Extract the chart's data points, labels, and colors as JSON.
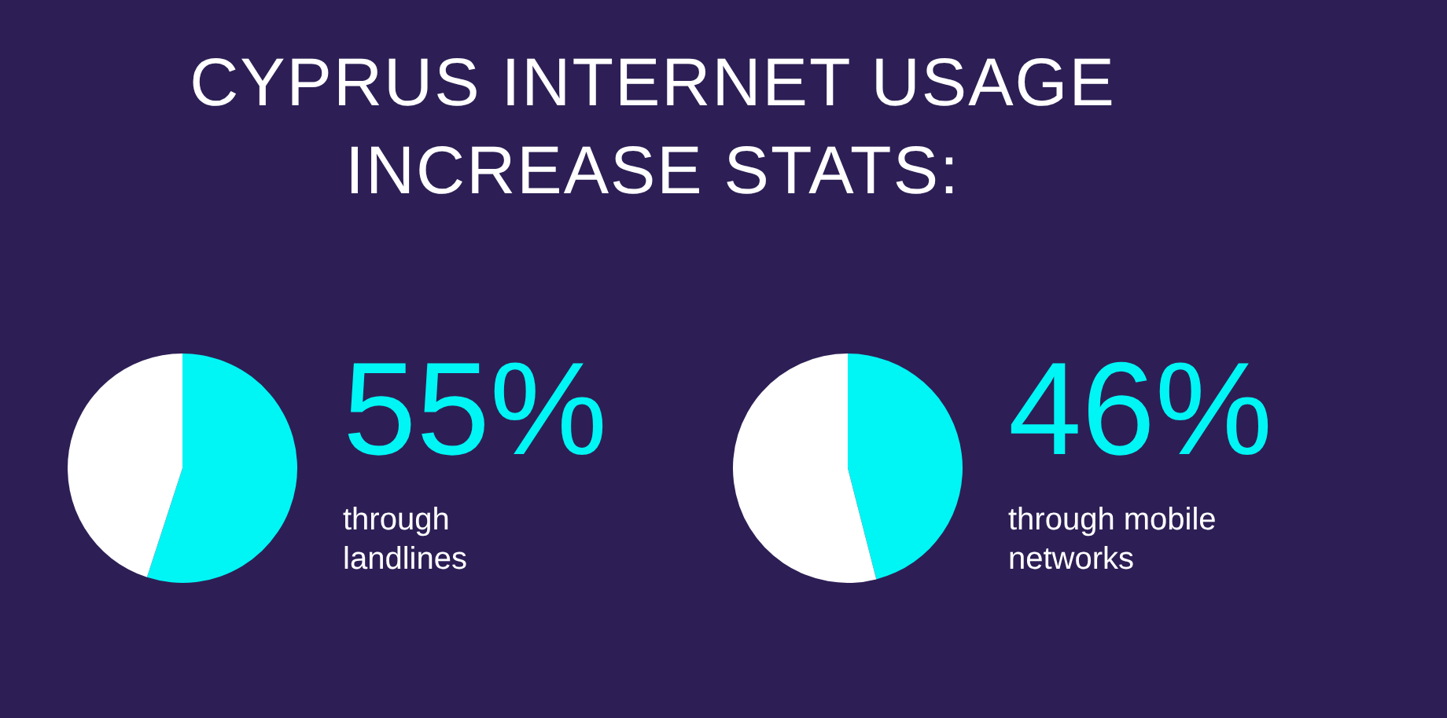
{
  "chart_data": [
    {
      "type": "pie",
      "title": "CYPRUS INTERNET USAGE INCREASE STATS:",
      "categories": [
        "through landlines",
        null
      ],
      "values": [
        55,
        45
      ],
      "colors": [
        "#00f5f5",
        "#ffffff"
      ],
      "value_labels": [
        "55%",
        null
      ],
      "legend": false
    },
    {
      "type": "pie",
      "categories": [
        "through mobile networks",
        null
      ],
      "values": [
        46,
        54
      ],
      "colors": [
        "#00f5f5",
        "#ffffff"
      ],
      "value_labels": [
        "46%",
        null
      ],
      "legend": false
    }
  ]
}
